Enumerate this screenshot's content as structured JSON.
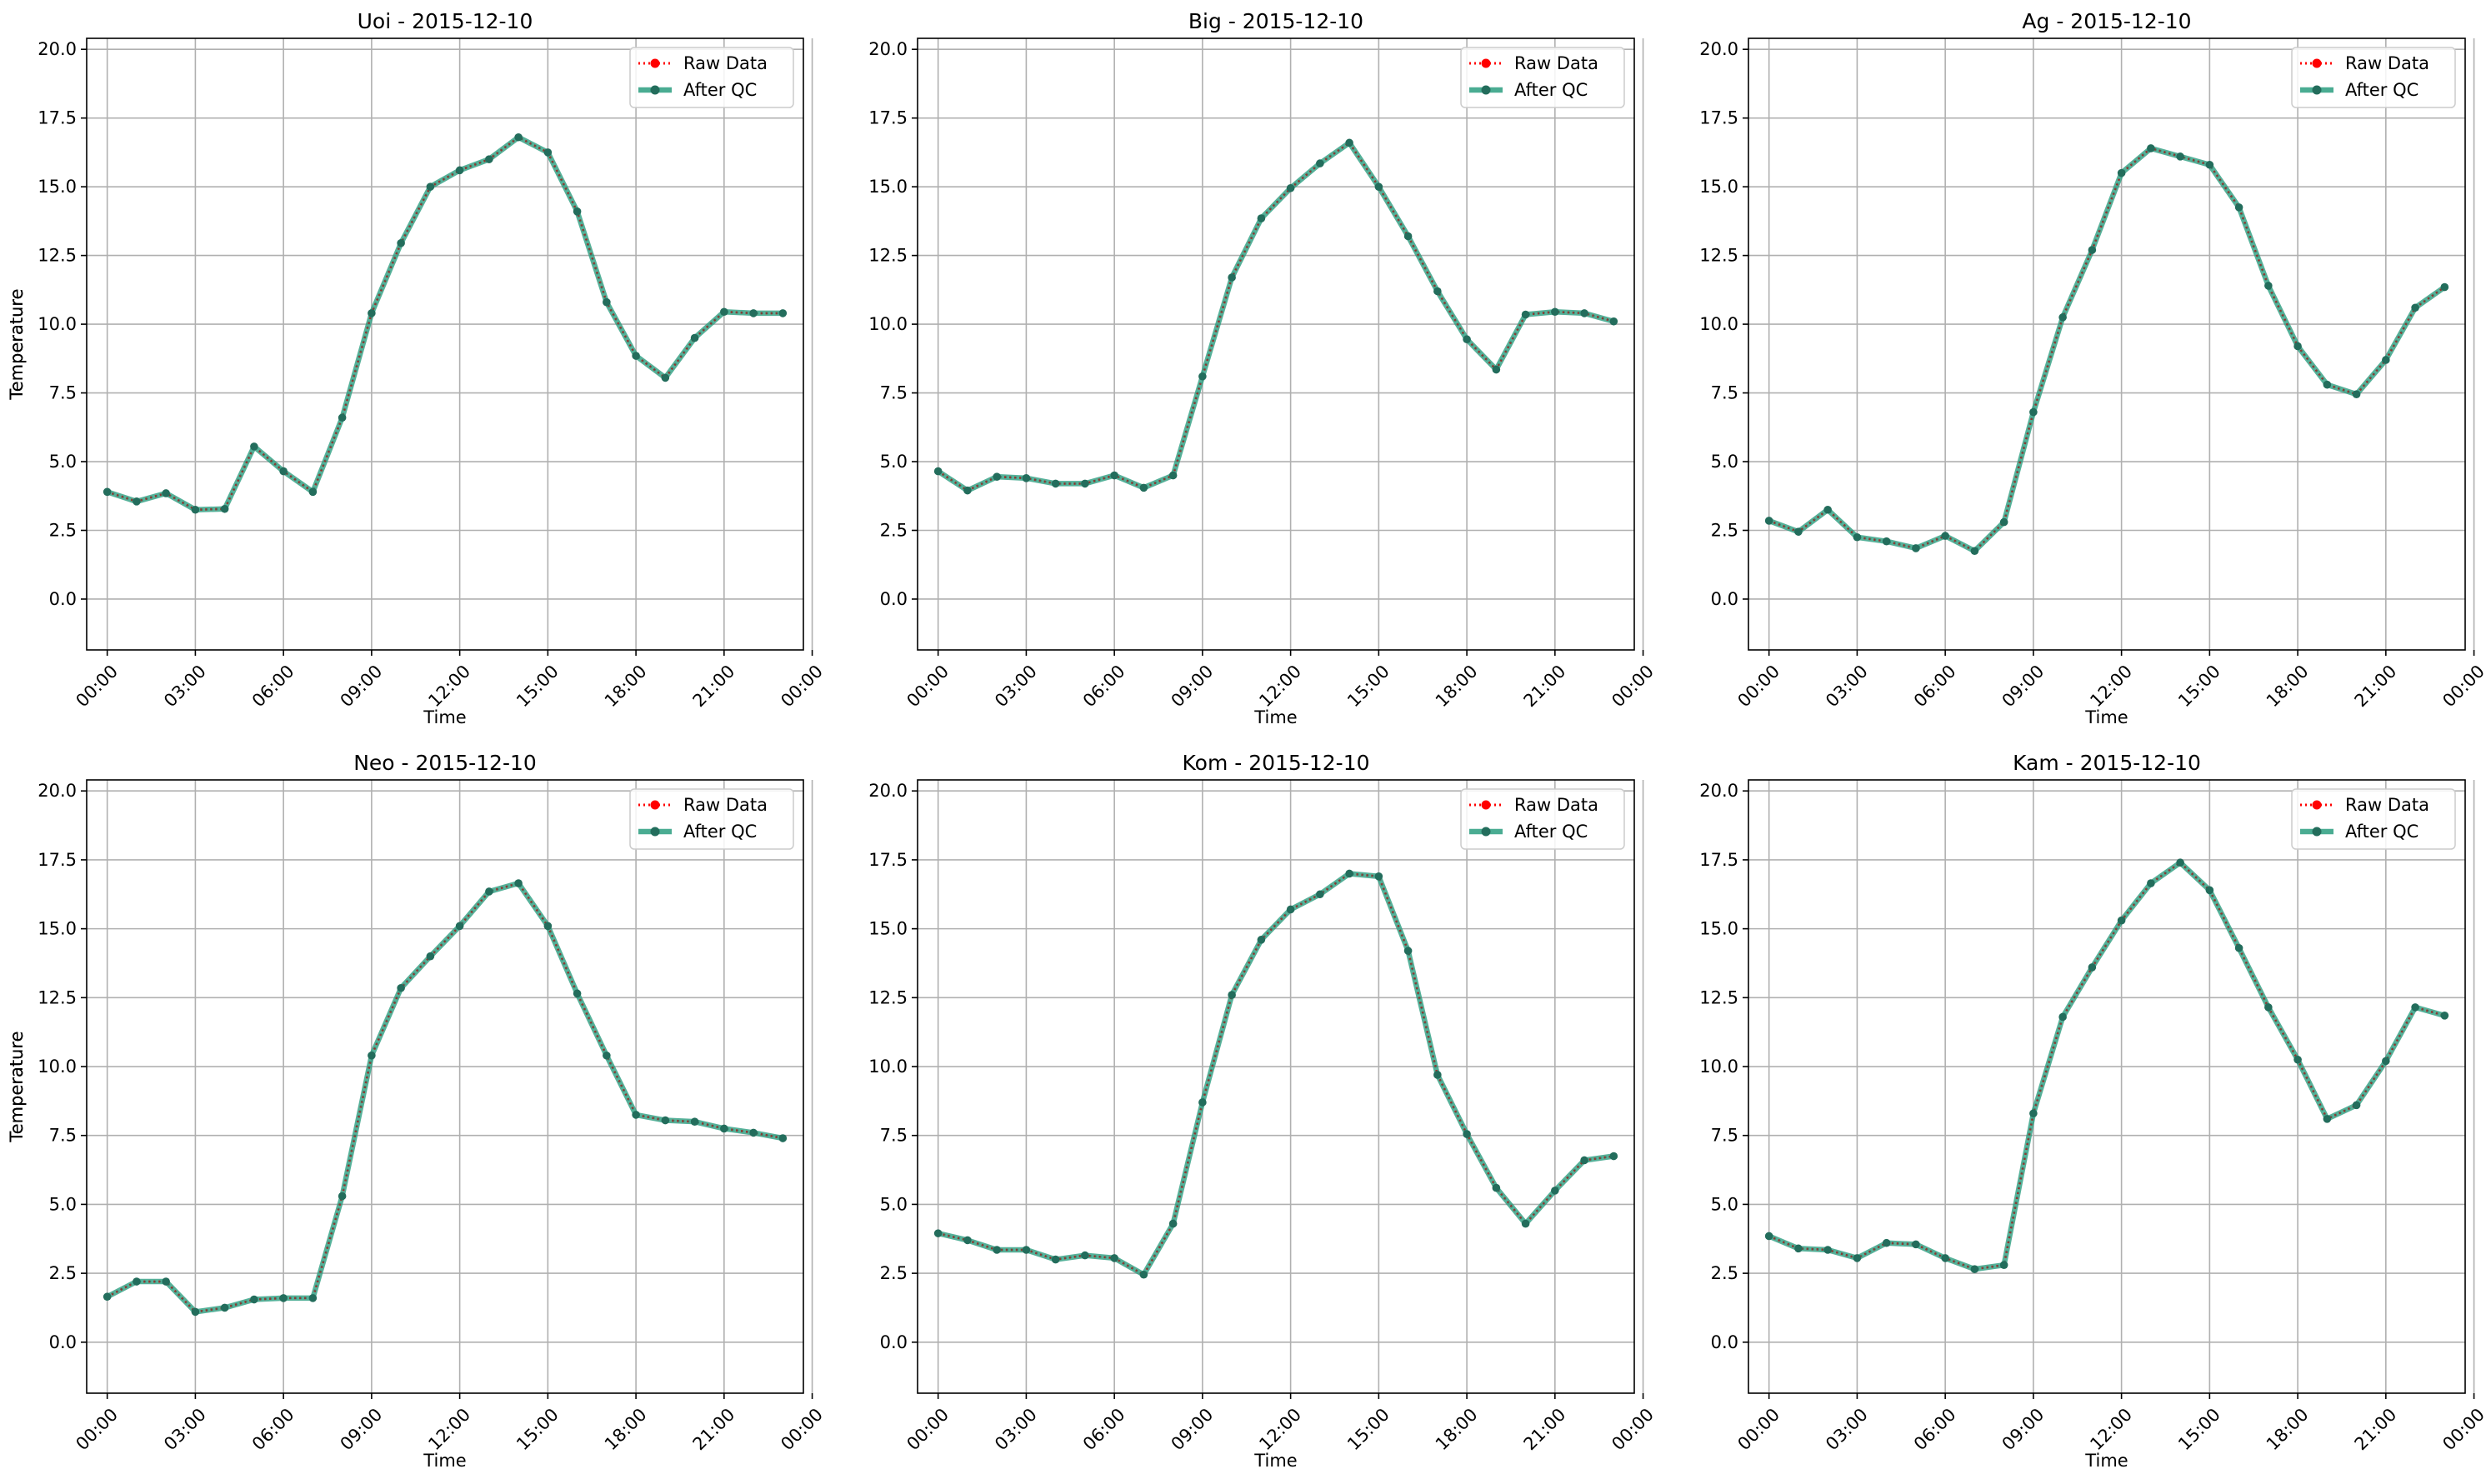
{
  "legend_labels": {
    "raw": "Raw Data",
    "qc": "After QC"
  },
  "colors": {
    "raw": "#ff0000",
    "qc": "#2a9d7f",
    "qc_dark": "#236d5c",
    "grid": "#b0b0b0"
  },
  "chart_data": [
    {
      "type": "line",
      "title": "Uoi - 2015-12-10",
      "xlabel": "Time",
      "ylabel": "Temperature",
      "xlim": [
        -0.7,
        23.7
      ],
      "ylim": [
        -1.85,
        20.4
      ],
      "yticks": [
        0,
        2.5,
        5,
        7.5,
        10,
        12.5,
        15,
        17.5,
        20
      ],
      "ytick_labels": [
        "0.0",
        "2.5",
        "5.0",
        "7.5",
        "10.0",
        "12.5",
        "15.0",
        "17.5",
        "20.0"
      ],
      "xticks": [
        0,
        3,
        6,
        9,
        12,
        15,
        18,
        21,
        24
      ],
      "xtick_labels": [
        "00:00",
        "03:00",
        "06:00",
        "09:00",
        "12:00",
        "15:00",
        "18:00",
        "21:00",
        "00:00"
      ],
      "grid": true,
      "legend": "top-right",
      "x": [
        0,
        1,
        2,
        3,
        4,
        5,
        6,
        7,
        8,
        9,
        10,
        11,
        12,
        13,
        14,
        15,
        16,
        17,
        18,
        19,
        20,
        21,
        22,
        23
      ],
      "series": [
        {
          "name": "Raw Data",
          "values": [
            3.9,
            3.55,
            3.85,
            3.25,
            3.28,
            5.55,
            4.65,
            3.9,
            6.6,
            10.4,
            12.95,
            15.0,
            15.6,
            16.0,
            16.8,
            16.25,
            14.1,
            10.8,
            8.85,
            8.05,
            9.5,
            10.45,
            10.4,
            10.4
          ]
        },
        {
          "name": "After QC",
          "values": [
            3.9,
            3.55,
            3.85,
            3.25,
            3.28,
            5.55,
            4.65,
            3.9,
            6.6,
            10.4,
            12.95,
            15.0,
            15.6,
            16.0,
            16.8,
            16.25,
            14.1,
            10.8,
            8.85,
            8.05,
            9.5,
            10.45,
            10.4,
            10.4
          ]
        }
      ]
    },
    {
      "type": "line",
      "title": "Big - 2015-12-10",
      "xlabel": "Time",
      "ylabel": "Temperature",
      "xlim": [
        -0.7,
        23.7
      ],
      "ylim": [
        -1.85,
        20.4
      ],
      "yticks": [
        0,
        2.5,
        5,
        7.5,
        10,
        12.5,
        15,
        17.5,
        20
      ],
      "ytick_labels": [
        "0.0",
        "2.5",
        "5.0",
        "7.5",
        "10.0",
        "12.5",
        "15.0",
        "17.5",
        "20.0"
      ],
      "xticks": [
        0,
        3,
        6,
        9,
        12,
        15,
        18,
        21,
        24
      ],
      "xtick_labels": [
        "00:00",
        "03:00",
        "06:00",
        "09:00",
        "12:00",
        "15:00",
        "18:00",
        "21:00",
        "00:00"
      ],
      "grid": true,
      "legend": "top-right",
      "x": [
        0,
        1,
        2,
        3,
        4,
        5,
        6,
        7,
        8,
        9,
        10,
        11,
        12,
        13,
        14,
        15,
        16,
        17,
        18,
        19,
        20,
        21,
        22,
        23
      ],
      "series": [
        {
          "name": "Raw Data",
          "values": [
            4.65,
            3.95,
            4.45,
            4.4,
            4.2,
            4.2,
            4.5,
            4.05,
            4.5,
            8.1,
            11.7,
            13.85,
            14.95,
            15.85,
            16.6,
            15.0,
            13.2,
            11.2,
            9.45,
            8.35,
            10.35,
            10.45,
            10.4,
            10.1
          ]
        },
        {
          "name": "After QC",
          "values": [
            4.65,
            3.95,
            4.45,
            4.4,
            4.2,
            4.2,
            4.5,
            4.05,
            4.5,
            8.1,
            11.7,
            13.85,
            14.95,
            15.85,
            16.6,
            15.0,
            13.2,
            11.2,
            9.45,
            8.35,
            10.35,
            10.45,
            10.4,
            10.1
          ]
        }
      ]
    },
    {
      "type": "line",
      "title": "Ag - 2015-12-10",
      "xlabel": "Time",
      "ylabel": "Temperature",
      "xlim": [
        -0.7,
        23.7
      ],
      "ylim": [
        -1.85,
        20.4
      ],
      "yticks": [
        0,
        2.5,
        5,
        7.5,
        10,
        12.5,
        15,
        17.5,
        20
      ],
      "ytick_labels": [
        "0.0",
        "2.5",
        "5.0",
        "7.5",
        "10.0",
        "12.5",
        "15.0",
        "17.5",
        "20.0"
      ],
      "xticks": [
        0,
        3,
        6,
        9,
        12,
        15,
        18,
        21,
        24
      ],
      "xtick_labels": [
        "00:00",
        "03:00",
        "06:00",
        "09:00",
        "12:00",
        "15:00",
        "18:00",
        "21:00",
        "00:00"
      ],
      "grid": true,
      "legend": "top-right",
      "x": [
        0,
        1,
        2,
        3,
        4,
        5,
        6,
        7,
        8,
        9,
        10,
        11,
        12,
        13,
        14,
        15,
        16,
        17,
        18,
        19,
        20,
        21,
        22,
        23
      ],
      "series": [
        {
          "name": "Raw Data",
          "values": [
            2.85,
            2.45,
            3.25,
            2.25,
            2.1,
            1.85,
            2.3,
            1.75,
            2.8,
            6.8,
            10.25,
            12.7,
            15.5,
            16.4,
            16.1,
            15.8,
            14.25,
            11.4,
            9.2,
            7.8,
            7.45,
            8.7,
            10.6,
            11.35
          ]
        },
        {
          "name": "After QC",
          "values": [
            2.85,
            2.45,
            3.25,
            2.25,
            2.1,
            1.85,
            2.3,
            1.75,
            2.8,
            6.8,
            10.25,
            12.7,
            15.5,
            16.4,
            16.1,
            15.8,
            14.25,
            11.4,
            9.2,
            7.8,
            7.45,
            8.7,
            10.6,
            11.35
          ]
        }
      ]
    },
    {
      "type": "line",
      "title": "Neo - 2015-12-10",
      "xlabel": "Time",
      "ylabel": "Temperature",
      "xlim": [
        -0.7,
        23.7
      ],
      "ylim": [
        -1.85,
        20.4
      ],
      "yticks": [
        0,
        2.5,
        5,
        7.5,
        10,
        12.5,
        15,
        17.5,
        20
      ],
      "ytick_labels": [
        "0.0",
        "2.5",
        "5.0",
        "7.5",
        "10.0",
        "12.5",
        "15.0",
        "17.5",
        "20.0"
      ],
      "xticks": [
        0,
        3,
        6,
        9,
        12,
        15,
        18,
        21,
        24
      ],
      "xtick_labels": [
        "00:00",
        "03:00",
        "06:00",
        "09:00",
        "12:00",
        "15:00",
        "18:00",
        "21:00",
        "00:00"
      ],
      "grid": true,
      "legend": "top-right",
      "x": [
        0,
        1,
        2,
        3,
        4,
        5,
        6,
        7,
        8,
        9,
        10,
        11,
        12,
        13,
        14,
        15,
        16,
        17,
        18,
        19,
        20,
        21,
        22,
        23
      ],
      "series": [
        {
          "name": "Raw Data",
          "values": [
            1.65,
            2.2,
            2.2,
            1.1,
            1.25,
            1.55,
            1.6,
            1.6,
            5.3,
            10.4,
            12.85,
            14.0,
            15.1,
            16.35,
            16.65,
            15.1,
            12.65,
            10.4,
            8.25,
            8.05,
            8.0,
            7.75,
            7.6,
            7.4
          ]
        },
        {
          "name": "After QC",
          "values": [
            1.65,
            2.2,
            2.2,
            1.1,
            1.25,
            1.55,
            1.6,
            1.6,
            5.3,
            10.4,
            12.85,
            14.0,
            15.1,
            16.35,
            16.65,
            15.1,
            12.65,
            10.4,
            8.25,
            8.05,
            8.0,
            7.75,
            7.6,
            7.4
          ]
        }
      ]
    },
    {
      "type": "line",
      "title": "Kom - 2015-12-10",
      "xlabel": "Time",
      "ylabel": "Temperature",
      "xlim": [
        -0.7,
        23.7
      ],
      "ylim": [
        -1.85,
        20.4
      ],
      "yticks": [
        0,
        2.5,
        5,
        7.5,
        10,
        12.5,
        15,
        17.5,
        20
      ],
      "ytick_labels": [
        "0.0",
        "2.5",
        "5.0",
        "7.5",
        "10.0",
        "12.5",
        "15.0",
        "17.5",
        "20.0"
      ],
      "xticks": [
        0,
        3,
        6,
        9,
        12,
        15,
        18,
        21,
        24
      ],
      "xtick_labels": [
        "00:00",
        "03:00",
        "06:00",
        "09:00",
        "12:00",
        "15:00",
        "18:00",
        "21:00",
        "00:00"
      ],
      "grid": true,
      "legend": "top-right",
      "x": [
        0,
        1,
        2,
        3,
        4,
        5,
        6,
        7,
        8,
        9,
        10,
        11,
        12,
        13,
        14,
        15,
        16,
        17,
        18,
        19,
        20,
        21,
        22,
        23
      ],
      "series": [
        {
          "name": "Raw Data",
          "values": [
            3.95,
            3.7,
            3.35,
            3.35,
            3.0,
            3.15,
            3.05,
            2.45,
            4.3,
            8.7,
            12.6,
            14.6,
            15.7,
            16.25,
            17.0,
            16.9,
            14.2,
            9.7,
            7.55,
            5.6,
            4.3,
            5.5,
            6.6,
            6.75
          ]
        },
        {
          "name": "After QC",
          "values": [
            3.95,
            3.7,
            3.35,
            3.35,
            3.0,
            3.15,
            3.05,
            2.45,
            4.3,
            8.7,
            12.6,
            14.6,
            15.7,
            16.25,
            17.0,
            16.9,
            14.2,
            9.7,
            7.55,
            5.6,
            4.3,
            5.5,
            6.6,
            6.75
          ]
        }
      ]
    },
    {
      "type": "line",
      "title": "Kam - 2015-12-10",
      "xlabel": "Time",
      "ylabel": "Temperature",
      "xlim": [
        -0.7,
        23.7
      ],
      "ylim": [
        -1.85,
        20.4
      ],
      "yticks": [
        0,
        2.5,
        5,
        7.5,
        10,
        12.5,
        15,
        17.5,
        20
      ],
      "ytick_labels": [
        "0.0",
        "2.5",
        "5.0",
        "7.5",
        "10.0",
        "12.5",
        "15.0",
        "17.5",
        "20.0"
      ],
      "xticks": [
        0,
        3,
        6,
        9,
        12,
        15,
        18,
        21,
        24
      ],
      "xtick_labels": [
        "00:00",
        "03:00",
        "06:00",
        "09:00",
        "12:00",
        "15:00",
        "18:00",
        "21:00",
        "00:00"
      ],
      "grid": true,
      "legend": "top-right",
      "x": [
        0,
        1,
        2,
        3,
        4,
        5,
        6,
        7,
        8,
        9,
        10,
        11,
        12,
        13,
        14,
        15,
        16,
        17,
        18,
        19,
        20,
        21,
        22,
        23
      ],
      "series": [
        {
          "name": "Raw Data",
          "values": [
            3.85,
            3.4,
            3.35,
            3.05,
            3.6,
            3.55,
            3.05,
            2.65,
            2.8,
            8.3,
            11.8,
            13.6,
            15.3,
            16.65,
            17.4,
            16.4,
            14.3,
            12.15,
            10.25,
            8.1,
            8.6,
            10.2,
            12.15,
            11.85
          ]
        },
        {
          "name": "After QC",
          "values": [
            3.85,
            3.4,
            3.35,
            3.05,
            3.6,
            3.55,
            3.05,
            2.65,
            2.8,
            8.3,
            11.8,
            13.6,
            15.3,
            16.65,
            17.4,
            16.4,
            14.3,
            12.15,
            10.25,
            8.1,
            8.6,
            10.2,
            12.15,
            11.85
          ]
        }
      ]
    }
  ]
}
